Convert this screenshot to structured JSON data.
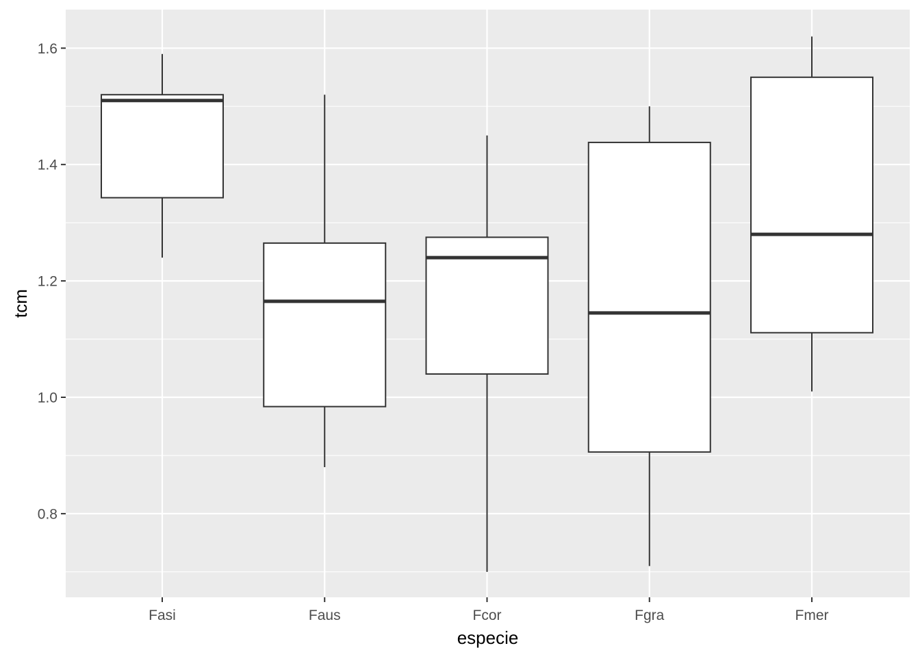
{
  "chart_data": {
    "type": "boxplot",
    "title": "",
    "xlabel": "especie",
    "ylabel": "tcm",
    "ylim": [
      0.65,
      1.66
    ],
    "y_ticks": [
      0.8,
      1.0,
      1.2,
      1.4,
      1.6
    ],
    "y_tick_labels": [
      "0.8",
      "1.0",
      "1.2",
      "1.4",
      "1.6"
    ],
    "categories": [
      "Fasi",
      "Faus",
      "Fcor",
      "Fgra",
      "Fmer"
    ],
    "boxes": [
      {
        "category": "Fasi",
        "whisker_low": 1.24,
        "q1": 1.343,
        "median": 1.51,
        "q3": 1.52,
        "whisker_high": 1.59
      },
      {
        "category": "Faus",
        "whisker_low": 0.88,
        "q1": 0.984,
        "median": 1.165,
        "q3": 1.265,
        "whisker_high": 1.52
      },
      {
        "category": "Fcor",
        "whisker_low": 0.7,
        "q1": 1.04,
        "median": 1.24,
        "q3": 1.275,
        "whisker_high": 1.45
      },
      {
        "category": "Fgra",
        "whisker_low": 0.71,
        "q1": 0.906,
        "median": 1.145,
        "q3": 1.438,
        "whisker_high": 1.5
      },
      {
        "category": "Fmer",
        "whisker_low": 1.01,
        "q1": 1.111,
        "median": 1.28,
        "q3": 1.55,
        "whisker_high": 1.62
      }
    ],
    "grid": true,
    "legend": "none",
    "colors": {
      "panel_background": "#ebebeb",
      "grid_major": "#ffffff",
      "box_fill": "#ffffff",
      "box_stroke": "#333333",
      "tick_text": "#4d4d4d",
      "axis_title": "#000000"
    }
  }
}
